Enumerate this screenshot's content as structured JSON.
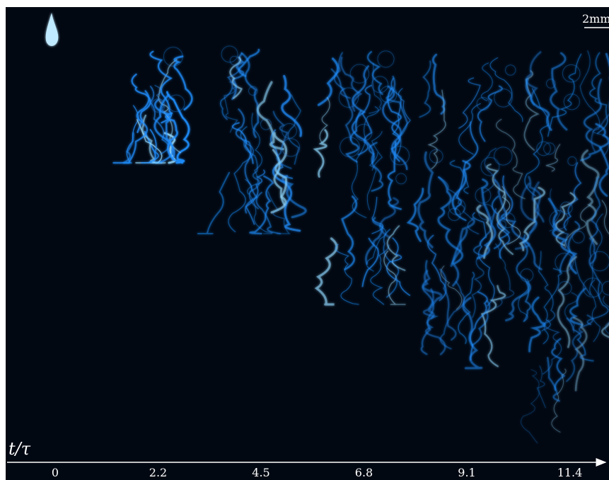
{
  "axis_label": "t/τ",
  "ticks": [
    "0",
    "2.2",
    "4.5",
    "6.8",
    "9.1",
    "11.4"
  ],
  "scale_bar": "2mm"
}
